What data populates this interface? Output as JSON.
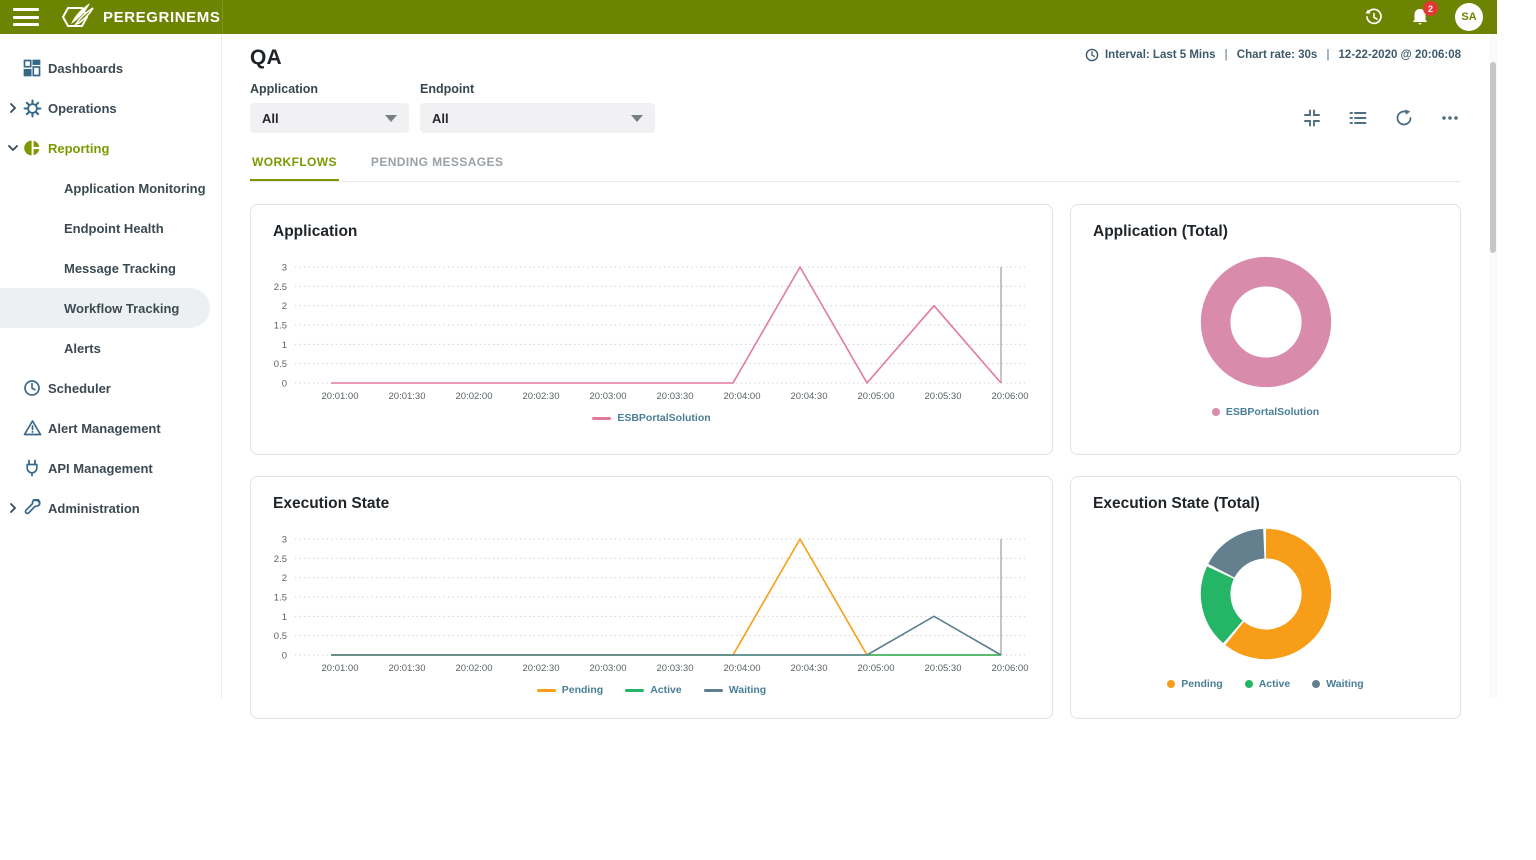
{
  "topbar": {
    "brand": "PEREGRINEMS",
    "notifications_badge": "2",
    "avatar_initials": "SA"
  },
  "sidebar": {
    "items": [
      {
        "label": "Dashboards",
        "icon": "dashboard-icon"
      },
      {
        "label": "Operations",
        "icon": "gear-icon",
        "expandable": true
      },
      {
        "label": "Reporting",
        "icon": "pie-chart-icon",
        "expanded": true,
        "active": true
      },
      {
        "label": "Application Monitoring",
        "child": true
      },
      {
        "label": "Endpoint Health",
        "child": true
      },
      {
        "label": "Message Tracking",
        "child": true
      },
      {
        "label": "Workflow Tracking",
        "child": true,
        "selected": true
      },
      {
        "label": "Alerts",
        "child": true
      },
      {
        "label": "Scheduler",
        "icon": "clock-icon"
      },
      {
        "label": "Alert Management",
        "icon": "warning-icon"
      },
      {
        "label": "API Management",
        "icon": "plug-icon"
      },
      {
        "label": "Administration",
        "icon": "wrench-icon",
        "expandable": true
      }
    ]
  },
  "page": {
    "title": "QA",
    "interval": "Interval: Last 5 Mins",
    "chart_rate": "Chart rate: 30s",
    "timestamp": "12-22-2020 @ 20:06:08",
    "separator": "|"
  },
  "filters": {
    "application": {
      "label": "Application",
      "value": "All"
    },
    "endpoint": {
      "label": "Endpoint",
      "value": "All"
    }
  },
  "tabs": [
    {
      "label": "WORKFLOWS",
      "active": true
    },
    {
      "label": "PENDING MESSAGES",
      "active": false
    }
  ],
  "toolbar": {
    "icons": [
      "collapse-icon",
      "list-icon",
      "refresh-icon",
      "more-icon"
    ]
  },
  "colors": {
    "topbar_green": "#6d8402",
    "accent_olive": "#7a9a00",
    "sidebar_icon_blue": "#37698a",
    "legend_text": "#4a7e95",
    "badge_red": "#e23733",
    "now_line_gray": "#ababab"
  },
  "chart_data": [
    {
      "id": "application_over_time",
      "type": "line",
      "title": "Application",
      "x_ticks": [
        "20:01:00",
        "20:01:30",
        "20:02:00",
        "20:02:30",
        "20:03:00",
        "20:03:30",
        "20:04:00",
        "20:04:30",
        "20:05:00",
        "20:05:30",
        "20:06:00"
      ],
      "ylim": [
        0,
        3
      ],
      "y_ticks": [
        0,
        0.5,
        1,
        1.5,
        2,
        2.5,
        3
      ],
      "grid": "dotted",
      "now_marker": true,
      "legend_position": "bottom",
      "series": [
        {
          "name": "ESBPortalSolution",
          "color": "#e2799f",
          "values": [
            0,
            0,
            0,
            0,
            0,
            0,
            0,
            3,
            0,
            2,
            0
          ]
        }
      ]
    },
    {
      "id": "application_total",
      "type": "donut",
      "title": "Application (Total)",
      "legend_position": "bottom",
      "slices": [
        {
          "name": "ESBPortalSolution",
          "color": "#d98bac",
          "percent": 100
        }
      ]
    },
    {
      "id": "execution_state",
      "type": "line",
      "title": "Execution State",
      "x_ticks": [
        "20:01:00",
        "20:01:30",
        "20:02:00",
        "20:02:30",
        "20:03:00",
        "20:03:30",
        "20:04:00",
        "20:04:30",
        "20:05:00",
        "20:05:30",
        "20:06:00"
      ],
      "ylim": [
        0,
        3
      ],
      "y_ticks": [
        0,
        0.5,
        1,
        1.5,
        2,
        2.5,
        3
      ],
      "grid": "dotted",
      "now_marker": true,
      "legend_position": "bottom",
      "series": [
        {
          "name": "Pending",
          "color": "#f79d17",
          "values": [
            0,
            0,
            0,
            0,
            0,
            0,
            0,
            3,
            0,
            0,
            0
          ]
        },
        {
          "name": "Active",
          "color": "#25b566",
          "values": [
            0,
            0,
            0,
            0,
            0,
            0,
            0,
            0,
            0,
            0,
            0
          ]
        },
        {
          "name": "Waiting",
          "color": "#5d7f8e",
          "values": [
            0,
            0,
            0,
            0,
            0,
            0,
            0,
            0,
            0,
            1,
            0
          ]
        }
      ]
    },
    {
      "id": "execution_state_total",
      "type": "donut",
      "title": "Execution State (Total)",
      "legend_position": "bottom",
      "slices": [
        {
          "name": "Pending",
          "color": "#f79d17",
          "percent": 62
        },
        {
          "name": "Active",
          "color": "#25b566",
          "percent": 21
        },
        {
          "name": "Waiting",
          "color": "#64808f",
          "percent": 17
        }
      ]
    }
  ]
}
